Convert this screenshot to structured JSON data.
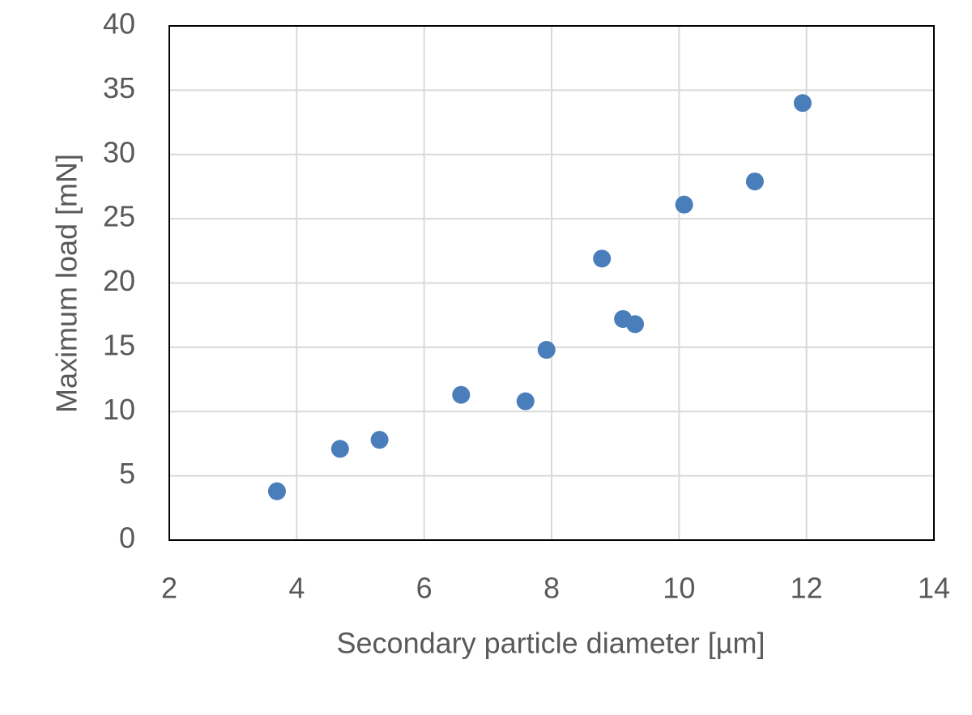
{
  "chart_data": {
    "type": "scatter",
    "x_label": "Secondary particle diameter [µm]",
    "y_label": "Maximum load [mN]",
    "x": [
      3.69,
      4.68,
      5.3,
      6.58,
      7.59,
      7.92,
      8.79,
      9.12,
      9.31,
      10.08,
      11.19,
      11.94
    ],
    "values": [
      3.8,
      7.1,
      7.8,
      11.3,
      10.8,
      14.8,
      21.9,
      17.2,
      16.8,
      26.1,
      27.9,
      34.0
    ],
    "color": "#4a7ebb",
    "xlim": [
      2,
      14
    ],
    "xticks": [
      2,
      4,
      6,
      8,
      10,
      12,
      14
    ],
    "ylim": [
      0,
      40
    ],
    "yticks": [
      0,
      5,
      10,
      15,
      20,
      25,
      30,
      35,
      40
    ],
    "grid": true
  }
}
